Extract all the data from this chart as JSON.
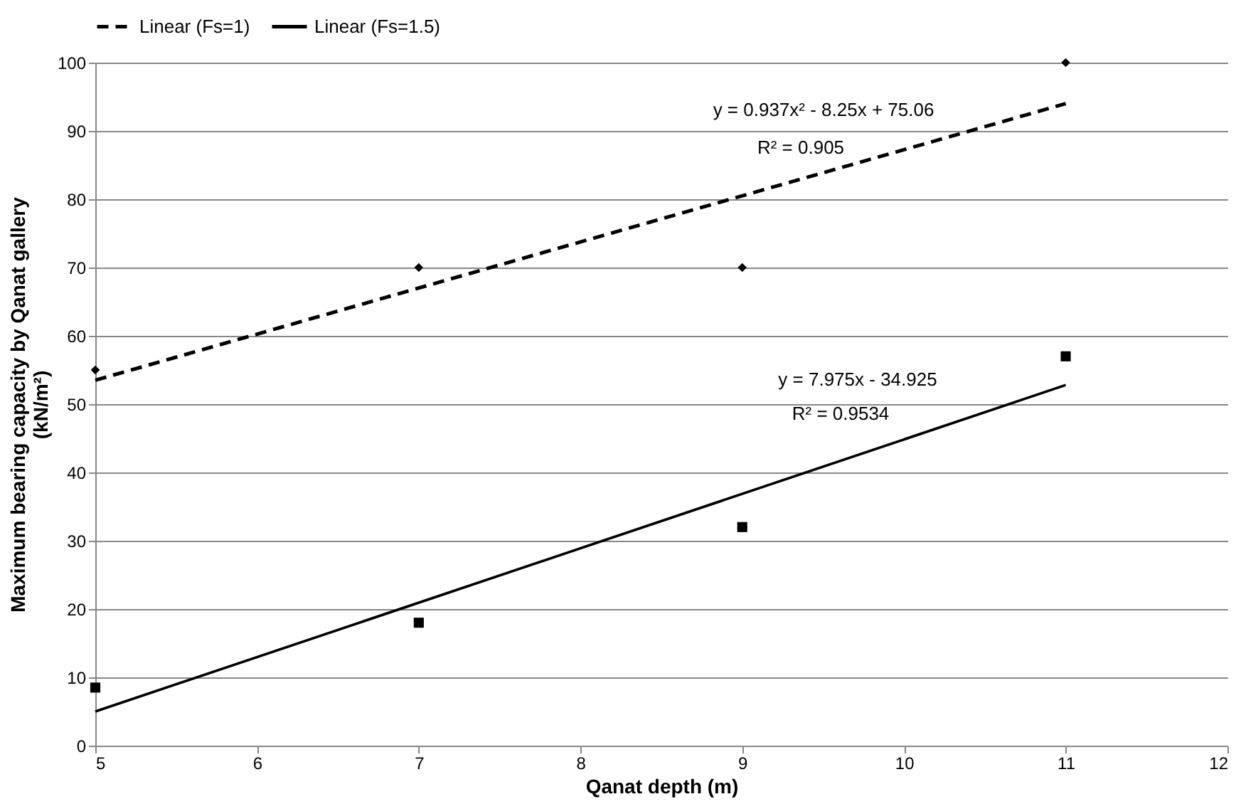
{
  "chart_data": {
    "type": "scatter",
    "xlabel": "Qanat depth (m)",
    "ylabel": "Maximum bearing capacity by Qanat gallery\n(kN/m²)",
    "xlim": [
      5,
      12
    ],
    "ylim": [
      0,
      100
    ],
    "xticks": [
      5,
      6,
      7,
      8,
      9,
      10,
      11,
      12
    ],
    "yticks": [
      0,
      10,
      20,
      30,
      40,
      50,
      60,
      70,
      80,
      90,
      100
    ],
    "grid": "y",
    "legend": "top",
    "series": [
      {
        "marker": "diamond",
        "color": "#000000",
        "x": [
          5,
          7,
          9,
          11
        ],
        "values": [
          55,
          70,
          70,
          100
        ]
      },
      {
        "marker": "square",
        "color": "#000000",
        "x": [
          5,
          7,
          9,
          11
        ],
        "values": [
          8.5,
          18,
          32,
          57
        ]
      },
      {
        "type": "line",
        "name": "Linear (Fs=1)",
        "line_style": "dashed",
        "color": "#000000",
        "x": [
          5,
          11
        ],
        "values": [
          53.5,
          94
        ]
      },
      {
        "type": "line",
        "name": "Linear (Fs=1.5)",
        "line_style": "solid",
        "color": "#000000",
        "x": [
          5,
          11
        ],
        "values": [
          5,
          52.8
        ]
      }
    ],
    "annotations": [
      "y = 0.937x² - 8.25x + 75.06",
      "R² = 0.905",
      "y = 7.975x - 34.925",
      "R² = 0.9534"
    ]
  }
}
